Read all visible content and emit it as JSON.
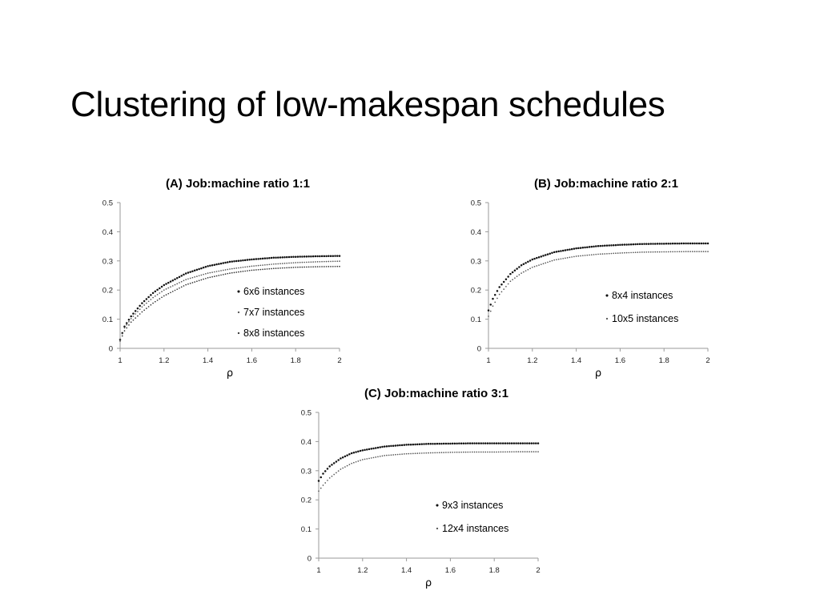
{
  "slide": {
    "title": "Clustering of low-makespan schedules"
  },
  "chart_data": [
    {
      "id": "A",
      "type": "scatter",
      "title": "(A) Job:machine ratio 1:1",
      "xlabel": "ρ",
      "ylabel": "",
      "xlim": [
        1,
        2
      ],
      "ylim": [
        0,
        0.5
      ],
      "xticks": [
        "1",
        "1.2",
        "1.4",
        "1.6",
        "1.8",
        "2"
      ],
      "yticks": [
        "0",
        "0.1",
        "0.2",
        "0.3",
        "0.4",
        "0.5"
      ],
      "grid": false,
      "legend": "inside-lower-right",
      "series": [
        {
          "name": "6x6 instances",
          "x": [
            1.0,
            1.02,
            1.05,
            1.1,
            1.15,
            1.2,
            1.3,
            1.4,
            1.5,
            1.6,
            1.7,
            1.8,
            1.9,
            2.0
          ],
          "values": [
            0.03,
            0.075,
            0.11,
            0.155,
            0.19,
            0.217,
            0.257,
            0.282,
            0.297,
            0.305,
            0.311,
            0.314,
            0.316,
            0.317
          ]
        },
        {
          "name": "7x7 instances",
          "x": [
            1.0,
            1.02,
            1.05,
            1.1,
            1.15,
            1.2,
            1.3,
            1.4,
            1.5,
            1.6,
            1.7,
            1.8,
            1.9,
            2.0
          ],
          "values": [
            0.03,
            0.07,
            0.102,
            0.142,
            0.174,
            0.2,
            0.236,
            0.258,
            0.272,
            0.282,
            0.289,
            0.294,
            0.297,
            0.299
          ]
        },
        {
          "name": "8x8 instances",
          "x": [
            1.0,
            1.02,
            1.05,
            1.1,
            1.15,
            1.2,
            1.3,
            1.4,
            1.5,
            1.6,
            1.7,
            1.8,
            1.9,
            2.0
          ],
          "values": [
            0.025,
            0.06,
            0.09,
            0.125,
            0.155,
            0.18,
            0.218,
            0.242,
            0.258,
            0.268,
            0.274,
            0.278,
            0.28,
            0.281
          ]
        }
      ]
    },
    {
      "id": "B",
      "type": "scatter",
      "title": "(B) Job:machine ratio 2:1",
      "xlabel": "ρ",
      "ylabel": "",
      "xlim": [
        1,
        2
      ],
      "ylim": [
        0,
        0.5
      ],
      "xticks": [
        "1",
        "1.2",
        "1.4",
        "1.6",
        "1.8",
        "2"
      ],
      "yticks": [
        "0",
        "0.1",
        "0.2",
        "0.3",
        "0.4",
        "0.5"
      ],
      "grid": false,
      "legend": "inside-lower-right",
      "series": [
        {
          "name": "8x4 instances",
          "x": [
            1.0,
            1.02,
            1.05,
            1.1,
            1.15,
            1.2,
            1.3,
            1.4,
            1.5,
            1.6,
            1.7,
            1.8,
            1.9,
            2.0
          ],
          "values": [
            0.13,
            0.17,
            0.21,
            0.255,
            0.285,
            0.305,
            0.33,
            0.343,
            0.351,
            0.355,
            0.358,
            0.359,
            0.36,
            0.36
          ]
        },
        {
          "name": "10x5 instances",
          "x": [
            1.0,
            1.02,
            1.05,
            1.1,
            1.15,
            1.2,
            1.3,
            1.4,
            1.5,
            1.6,
            1.7,
            1.8,
            1.9,
            2.0
          ],
          "values": [
            0.11,
            0.145,
            0.185,
            0.23,
            0.258,
            0.278,
            0.303,
            0.316,
            0.323,
            0.327,
            0.33,
            0.331,
            0.332,
            0.332
          ]
        }
      ]
    },
    {
      "id": "C",
      "type": "scatter",
      "title": "(C) Job:machine ratio 3:1",
      "xlabel": "ρ",
      "ylabel": "",
      "xlim": [
        1,
        2
      ],
      "ylim": [
        0,
        0.5
      ],
      "xticks": [
        "1",
        "1.2",
        "1.4",
        "1.6",
        "1.8",
        "2"
      ],
      "yticks": [
        "0",
        "0.1",
        "0.2",
        "0.3",
        "0.4",
        "0.5"
      ],
      "grid": false,
      "legend": "inside-lower-right",
      "series": [
        {
          "name": "9x3 instances",
          "x": [
            1.0,
            1.02,
            1.05,
            1.1,
            1.15,
            1.2,
            1.3,
            1.4,
            1.5,
            1.6,
            1.7,
            1.8,
            1.9,
            2.0
          ],
          "values": [
            0.265,
            0.29,
            0.315,
            0.342,
            0.36,
            0.37,
            0.383,
            0.389,
            0.392,
            0.393,
            0.394,
            0.394,
            0.394,
            0.394
          ]
        },
        {
          "name": "12x4 instances",
          "x": [
            1.0,
            1.02,
            1.05,
            1.1,
            1.15,
            1.2,
            1.3,
            1.4,
            1.5,
            1.6,
            1.7,
            1.8,
            1.9,
            2.0
          ],
          "values": [
            0.23,
            0.25,
            0.275,
            0.305,
            0.325,
            0.338,
            0.352,
            0.358,
            0.361,
            0.363,
            0.364,
            0.364,
            0.365,
            0.365
          ]
        }
      ]
    }
  ]
}
